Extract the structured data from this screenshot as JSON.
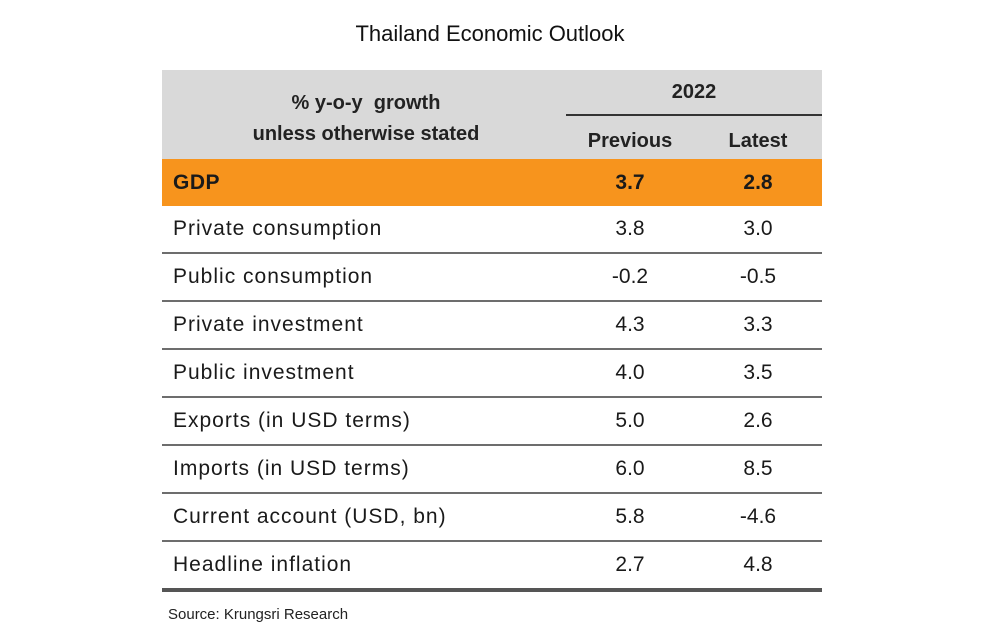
{
  "title": "Thailand Economic Outlook",
  "header": {
    "description_line1": "% y-o-y  growth",
    "description_line2": "unless otherwise stated",
    "year": "2022",
    "col_previous": "Previous",
    "col_latest": "Latest"
  },
  "rows": [
    {
      "label": "GDP",
      "previous": "3.7",
      "latest": "2.8"
    },
    {
      "label": "Private consumption",
      "previous": "3.8",
      "latest": "3.0"
    },
    {
      "label": "Public consumption",
      "previous": "-0.2",
      "latest": "-0.5"
    },
    {
      "label": "Private investment",
      "previous": "4.3",
      "latest": "3.3"
    },
    {
      "label": "Public investment",
      "previous": "4.0",
      "latest": "3.5"
    },
    {
      "label": "Exports (in USD terms)",
      "previous": "5.0",
      "latest": "2.6"
    },
    {
      "label": "Imports (in USD terms)",
      "previous": "6.0",
      "latest": "8.5"
    },
    {
      "label": "Current account (USD, bn)",
      "previous": "5.8",
      "latest": "-4.6"
    },
    {
      "label": "Headline inflation",
      "previous": "2.7",
      "latest": "4.8"
    }
  ],
  "source": "Source: Krungsri Research",
  "colors": {
    "highlight_row": "#f7941d",
    "header_background": "#d9d9d9"
  }
}
